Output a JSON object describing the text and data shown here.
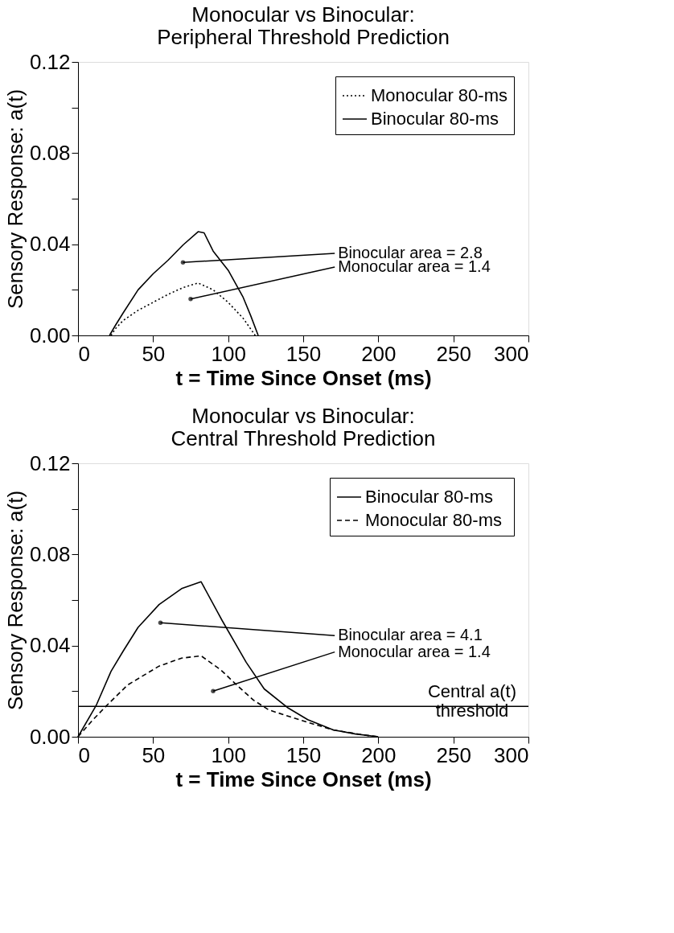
{
  "chart_data": [
    {
      "type": "line",
      "title": [
        "Monocular vs Binocular:",
        "Peripheral Threshold Prediction"
      ],
      "xlabel": "t = Time Since Onset (ms)",
      "ylabel": "Sensory Response: a(t)",
      "xlim": [
        0,
        300
      ],
      "xticks": [
        0,
        50,
        100,
        150,
        200,
        250,
        300
      ],
      "ylim": [
        0,
        0.12
      ],
      "yticks": [
        {
          "value": 0,
          "label": "0.00"
        },
        {
          "value": 0.02,
          "label": null
        },
        {
          "value": 0.04,
          "label": "0.04"
        },
        {
          "value": 0.06,
          "label": null
        },
        {
          "value": 0.08,
          "label": "0.08"
        },
        {
          "value": 0.1,
          "label": null
        },
        {
          "value": 0.12,
          "label": "0.12"
        }
      ],
      "grid": false,
      "legend": "top right",
      "marker": "none",
      "series": [
        {
          "name": "Monocular 80-ms",
          "color": "#000000",
          "line_style": "dotted",
          "x": [
            22,
            25,
            30,
            40,
            50,
            60,
            70,
            80,
            90,
            100,
            110,
            118
          ],
          "values": [
            0,
            0.003,
            0.0065,
            0.011,
            0.0145,
            0.018,
            0.021,
            0.023,
            0.02,
            0.0145,
            0.0075,
            0
          ]
        },
        {
          "name": "Binocular 80-ms",
          "color": "#000000",
          "line_style": "solid",
          "x": [
            21,
            25,
            30,
            40,
            50,
            60,
            70,
            80,
            84,
            90,
            100,
            110,
            115,
            120
          ],
          "values": [
            0,
            0.0045,
            0.0098,
            0.02,
            0.027,
            0.033,
            0.0397,
            0.0455,
            0.045,
            0.037,
            0.0286,
            0.0167,
            0.0087,
            0
          ]
        }
      ],
      "annotations": [
        "Binocular area = 2.8",
        "Monocular area = 1.4"
      ]
    },
    {
      "type": "line",
      "title": [
        "Monocular vs Binocular:",
        "Central Threshold Prediction"
      ],
      "xlabel": "t = Time Since Onset (ms)",
      "ylabel": "Sensory Response: a(t)",
      "xlim": [
        0,
        300
      ],
      "xticks": [
        0,
        50,
        100,
        150,
        200,
        250,
        300
      ],
      "ylim": [
        0,
        0.12
      ],
      "yticks": [
        {
          "value": 0,
          "label": "0.00"
        },
        {
          "value": 0.02,
          "label": null
        },
        {
          "value": 0.04,
          "label": "0.04"
        },
        {
          "value": 0.06,
          "label": null
        },
        {
          "value": 0.08,
          "label": "0.08"
        },
        {
          "value": 0.1,
          "label": null
        },
        {
          "value": 0.12,
          "label": "0.12"
        }
      ],
      "grid": false,
      "legend": "top right",
      "marker": "none",
      "series": [
        {
          "name": "Binocular 80-ms",
          "color": "#000000",
          "line_style": "solid",
          "x": [
            0,
            12,
            22,
            30,
            40,
            54,
            69,
            82,
            96,
            112,
            124,
            140,
            153,
            170,
            185,
            200
          ],
          "values": [
            0,
            0.0136,
            0.0287,
            0.0375,
            0.048,
            0.058,
            0.065,
            0.068,
            0.051,
            0.0327,
            0.021,
            0.0126,
            0.0075,
            0.003,
            0.0012,
            0
          ]
        },
        {
          "name": "Monocular  80-ms",
          "color": "#000000",
          "line_style": "dashed",
          "x": [
            0,
            10,
            20,
            33,
            54,
            69,
            82,
            95,
            107,
            117,
            127,
            142,
            153,
            170,
            190,
            200
          ],
          "values": [
            0,
            0.0075,
            0.0143,
            0.0227,
            0.031,
            0.0345,
            0.0355,
            0.0294,
            0.0219,
            0.016,
            0.0118,
            0.0086,
            0.0063,
            0.003,
            0.0008,
            0
          ]
        }
      ],
      "ref_lines": [
        {
          "axis": "y",
          "value": 0.0133,
          "label": "Central a(t)\nthreshold",
          "color": "#000000"
        }
      ],
      "annotations": [
        "Binocular area = 4.1",
        "Monocular area = 1.4"
      ]
    }
  ]
}
